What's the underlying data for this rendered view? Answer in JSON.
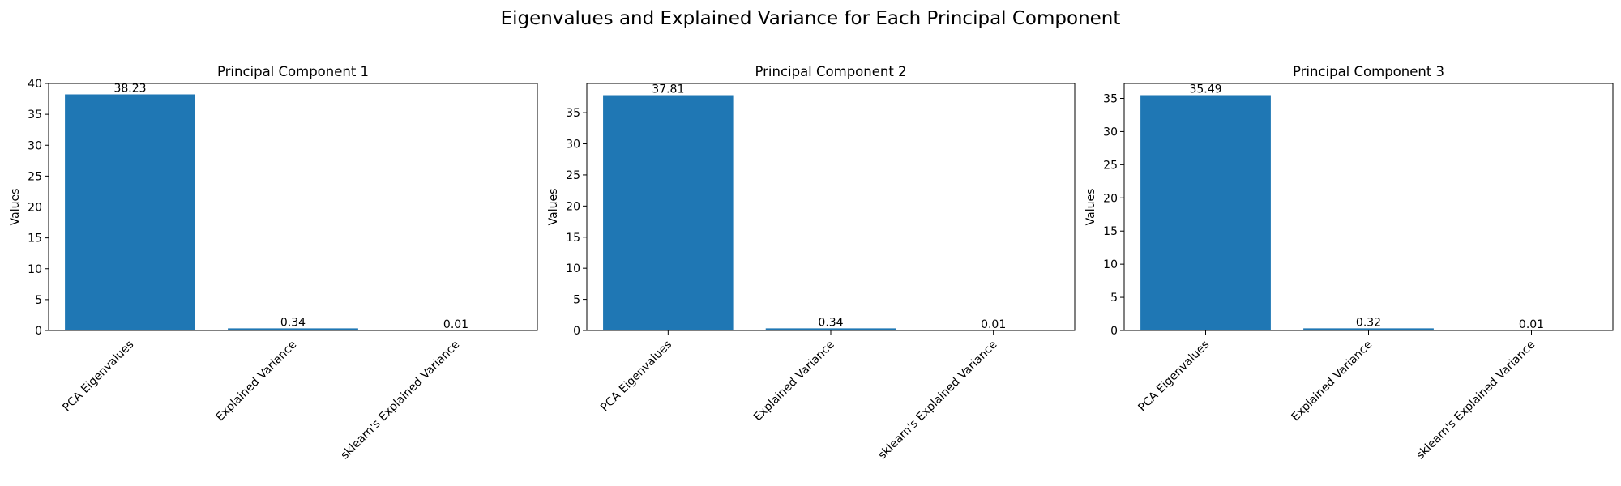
{
  "figure": {
    "title": "Eigenvalues and Explained Variance for Each Principal Component",
    "bar_color": "#1f77b4"
  },
  "chart_data": [
    {
      "type": "bar",
      "title": "Principal Component 1",
      "xlabel": "",
      "ylabel": "Values",
      "categories": [
        "PCA Eigenvalues",
        "Explained Variance",
        "sklearn's Explained Variance"
      ],
      "values": [
        38.23,
        0.34,
        0.01
      ],
      "value_labels": [
        "38.23",
        "0.34",
        "0.01"
      ],
      "ylim": [
        0,
        40
      ],
      "yticks": [
        0,
        5,
        10,
        15,
        20,
        25,
        30,
        35,
        40
      ],
      "grid": false,
      "legend": "none"
    },
    {
      "type": "bar",
      "title": "Principal Component 2",
      "xlabel": "",
      "ylabel": "Values",
      "categories": [
        "PCA Eigenvalues",
        "Explained Variance",
        "sklearn's Explained Variance"
      ],
      "values": [
        37.81,
        0.34,
        0.01
      ],
      "value_labels": [
        "37.81",
        "0.34",
        "0.01"
      ],
      "ylim": [
        0,
        39.7
      ],
      "yticks": [
        0,
        5,
        10,
        15,
        20,
        25,
        30,
        35
      ],
      "grid": false,
      "legend": "none"
    },
    {
      "type": "bar",
      "title": "Principal Component 3",
      "xlabel": "",
      "ylabel": "Values",
      "categories": [
        "PCA Eigenvalues",
        "Explained Variance",
        "sklearn's Explained Variance"
      ],
      "values": [
        35.49,
        0.32,
        0.01
      ],
      "value_labels": [
        "35.49",
        "0.32",
        "0.01"
      ],
      "ylim": [
        0,
        37.26
      ],
      "yticks": [
        0,
        5,
        10,
        15,
        20,
        25,
        30,
        35
      ],
      "grid": false,
      "legend": "none"
    }
  ]
}
